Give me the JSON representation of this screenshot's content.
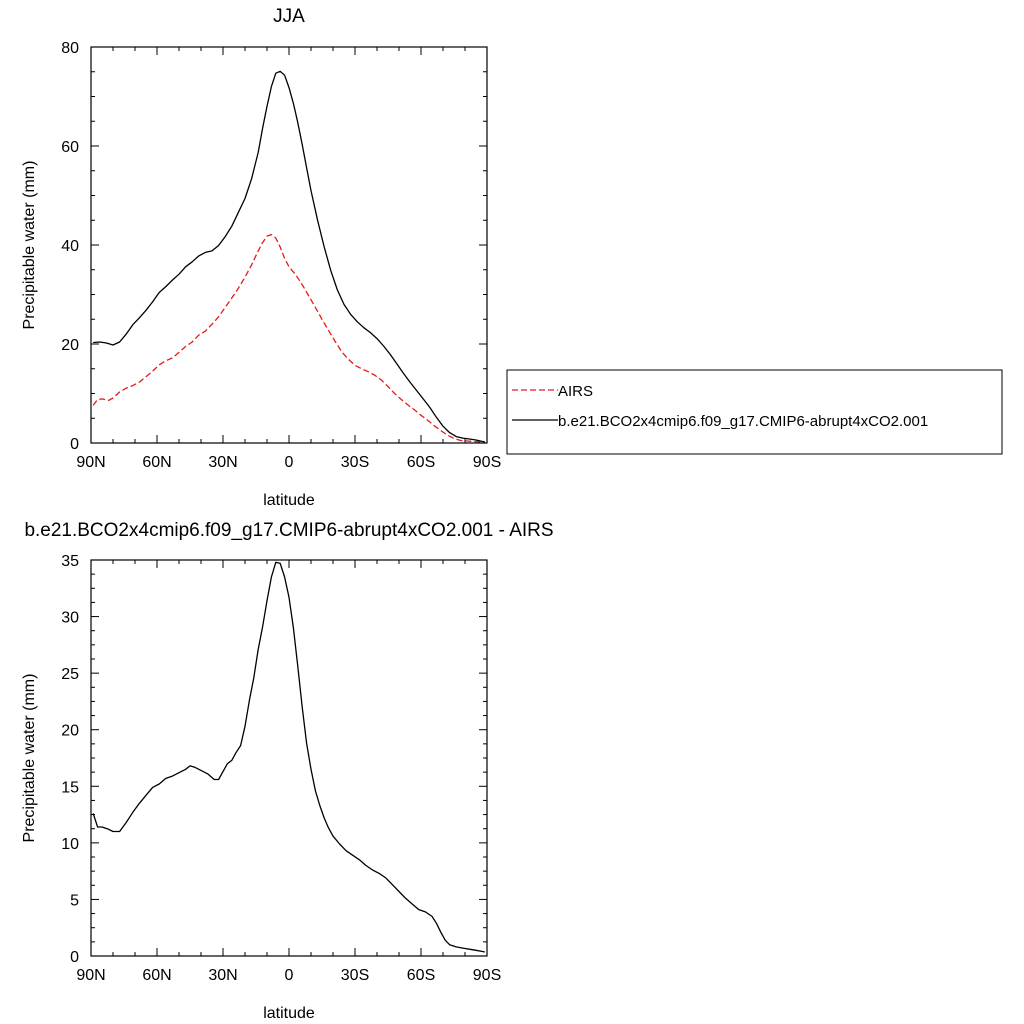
{
  "colors": {
    "model": "#000000",
    "airs": "#e8191a",
    "axis": "#000000",
    "background": "#ffffff"
  },
  "chart_data": [
    {
      "type": "line",
      "title": "JJA",
      "xlabel": "latitude",
      "ylabel": "Precipitable water (mm)",
      "xlim": [
        90,
        -90
      ],
      "ylim": [
        0,
        80
      ],
      "xticks": [
        90,
        60,
        30,
        0,
        -30,
        -60,
        -90
      ],
      "xtick_labels": [
        "90N",
        "60N",
        "30N",
        "0",
        "30S",
        "60S",
        "90S"
      ],
      "yticks": [
        0,
        20,
        40,
        60,
        80
      ],
      "ytick_labels": [
        "0",
        "20",
        "40",
        "60",
        "80"
      ],
      "grid": false,
      "legend": "right",
      "series": [
        {
          "name": "AIRS",
          "style": "dashed",
          "color": "#e8191a",
          "points": [
            [
              89,
              7.6
            ],
            [
              87,
              8.8
            ],
            [
              85,
              8.9
            ],
            [
              82,
              8.6
            ],
            [
              80,
              9.1
            ],
            [
              77,
              10.3
            ],
            [
              74,
              11.1
            ],
            [
              71,
              11.6
            ],
            [
              68,
              12.3
            ],
            [
              65,
              13.4
            ],
            [
              62,
              14.5
            ],
            [
              59,
              15.8
            ],
            [
              56,
              16.6
            ],
            [
              53,
              17.2
            ],
            [
              50,
              18.3
            ],
            [
              47,
              19.5
            ],
            [
              44,
              20.4
            ],
            [
              41,
              21.8
            ],
            [
              38,
              22.6
            ],
            [
              35,
              24.0
            ],
            [
              32,
              25.5
            ],
            [
              29,
              27.4
            ],
            [
              26,
              29.3
            ],
            [
              23,
              31.3
            ],
            [
              20,
              33.5
            ],
            [
              17,
              36.0
            ],
            [
              14,
              38.8
            ],
            [
              12,
              40.5
            ],
            [
              10,
              41.8
            ],
            [
              8,
              42.1
            ],
            [
              6,
              41.4
            ],
            [
              4,
              39.6
            ],
            [
              2,
              37.3
            ],
            [
              0,
              35.6
            ],
            [
              -3,
              34.0
            ],
            [
              -6,
              32.0
            ],
            [
              -9,
              29.7
            ],
            [
              -12,
              27.4
            ],
            [
              -15,
              25.0
            ],
            [
              -18,
              22.7
            ],
            [
              -21,
              20.5
            ],
            [
              -24,
              18.4
            ],
            [
              -27,
              16.9
            ],
            [
              -30,
              15.7
            ],
            [
              -33,
              15.0
            ],
            [
              -36,
              14.4
            ],
            [
              -39,
              13.7
            ],
            [
              -42,
              12.7
            ],
            [
              -45,
              11.4
            ],
            [
              -48,
              10.0
            ],
            [
              -51,
              8.8
            ],
            [
              -54,
              7.7
            ],
            [
              -57,
              6.7
            ],
            [
              -60,
              5.6
            ],
            [
              -63,
              4.6
            ],
            [
              -66,
              3.5
            ],
            [
              -69,
              2.5
            ],
            [
              -72,
              1.6
            ],
            [
              -75,
              0.9
            ],
            [
              -78,
              0.5
            ],
            [
              -81,
              0.4
            ],
            [
              -84,
              0.3
            ],
            [
              -87,
              0.25
            ],
            [
              -89,
              0.2
            ]
          ]
        },
        {
          "name": "b.e21.BCO2x4cmip6.f09_g17.CMIP6-abrupt4xCO2.001",
          "style": "solid",
          "color": "#000000",
          "points": [
            [
              89,
              20.3
            ],
            [
              86,
              20.4
            ],
            [
              83,
              20.2
            ],
            [
              80,
              19.8
            ],
            [
              77,
              20.4
            ],
            [
              74,
              22.0
            ],
            [
              71,
              23.9
            ],
            [
              68,
              25.3
            ],
            [
              65,
              26.8
            ],
            [
              62,
              28.5
            ],
            [
              59,
              30.4
            ],
            [
              56,
              31.6
            ],
            [
              53,
              32.9
            ],
            [
              50,
              34.1
            ],
            [
              47,
              35.6
            ],
            [
              44,
              36.6
            ],
            [
              41,
              37.8
            ],
            [
              38,
              38.5
            ],
            [
              35,
              38.8
            ],
            [
              32,
              39.9
            ],
            [
              29,
              41.7
            ],
            [
              26,
              43.8
            ],
            [
              23,
              46.6
            ],
            [
              20,
              49.4
            ],
            [
              17,
              53.4
            ],
            [
              14,
              58.7
            ],
            [
              12,
              63.6
            ],
            [
              10,
              68.0
            ],
            [
              8,
              72.0
            ],
            [
              6,
              74.7
            ],
            [
              4,
              75.1
            ],
            [
              2,
              74.3
            ],
            [
              0,
              71.8
            ],
            [
              -2,
              68.6
            ],
            [
              -4,
              64.7
            ],
            [
              -6,
              60.3
            ],
            [
              -8,
              55.6
            ],
            [
              -10,
              51.0
            ],
            [
              -13,
              45.0
            ],
            [
              -16,
              39.6
            ],
            [
              -19,
              34.8
            ],
            [
              -22,
              30.9
            ],
            [
              -25,
              28.0
            ],
            [
              -28,
              26.0
            ],
            [
              -31,
              24.5
            ],
            [
              -34,
              23.3
            ],
            [
              -37,
              22.3
            ],
            [
              -40,
              21.1
            ],
            [
              -43,
              19.6
            ],
            [
              -46,
              17.9
            ],
            [
              -49,
              16.0
            ],
            [
              -52,
              14.1
            ],
            [
              -55,
              12.3
            ],
            [
              -58,
              10.6
            ],
            [
              -61,
              8.9
            ],
            [
              -64,
              7.2
            ],
            [
              -67,
              5.2
            ],
            [
              -70,
              3.4
            ],
            [
              -73,
              2.1
            ],
            [
              -76,
              1.3
            ],
            [
              -79,
              1.0
            ],
            [
              -82,
              0.8
            ],
            [
              -85,
              0.6
            ],
            [
              -88,
              0.3
            ],
            [
              -89,
              0.2
            ]
          ]
        }
      ]
    },
    {
      "type": "line",
      "title": "b.e21.BCO2x4cmip6.f09_g17.CMIP6-abrupt4xCO2.001 - AIRS",
      "xlabel": "latitude",
      "ylabel": "Precipitable water (mm)",
      "xlim": [
        90,
        -90
      ],
      "ylim": [
        0,
        35
      ],
      "xticks": [
        90,
        60,
        30,
        0,
        -30,
        -60,
        -90
      ],
      "xtick_labels": [
        "90N",
        "60N",
        "30N",
        "0",
        "30S",
        "60S",
        "90S"
      ],
      "yticks": [
        0,
        5,
        10,
        15,
        20,
        25,
        30,
        35
      ],
      "ytick_labels": [
        "0",
        "5",
        "10",
        "15",
        "20",
        "25",
        "30",
        "35"
      ],
      "grid": false,
      "legend": "none",
      "series": [
        {
          "style": "solid",
          "color": "#000000",
          "points": [
            [
              89,
              12.6
            ],
            [
              87,
              11.4
            ],
            [
              85,
              11.4
            ],
            [
              82,
              11.2
            ],
            [
              80,
              11.0
            ],
            [
              77,
              11.0
            ],
            [
              74,
              11.8
            ],
            [
              71,
              12.7
            ],
            [
              68,
              13.5
            ],
            [
              65,
              14.2
            ],
            [
              62,
              14.9
            ],
            [
              59,
              15.2
            ],
            [
              56,
              15.7
            ],
            [
              53,
              15.9
            ],
            [
              50,
              16.2
            ],
            [
              47,
              16.5
            ],
            [
              45,
              16.8
            ],
            [
              43,
              16.7
            ],
            [
              40,
              16.4
            ],
            [
              37,
              16.1
            ],
            [
              34,
              15.6
            ],
            [
              32,
              15.6
            ],
            [
              30,
              16.3
            ],
            [
              28,
              17.0
            ],
            [
              26,
              17.3
            ],
            [
              24,
              18.0
            ],
            [
              22,
              18.6
            ],
            [
              20,
              20.3
            ],
            [
              18,
              22.6
            ],
            [
              16,
              24.6
            ],
            [
              14,
              27.1
            ],
            [
              12,
              29.1
            ],
            [
              10,
              31.4
            ],
            [
              8,
              33.5
            ],
            [
              6,
              34.8
            ],
            [
              4,
              34.7
            ],
            [
              2,
              33.5
            ],
            [
              0,
              31.7
            ],
            [
              -2,
              29.0
            ],
            [
              -4,
              25.6
            ],
            [
              -6,
              22.0
            ],
            [
              -8,
              18.8
            ],
            [
              -10,
              16.5
            ],
            [
              -12,
              14.6
            ],
            [
              -14,
              13.3
            ],
            [
              -16,
              12.2
            ],
            [
              -18,
              11.3
            ],
            [
              -20,
              10.6
            ],
            [
              -23,
              9.9
            ],
            [
              -26,
              9.3
            ],
            [
              -29,
              8.9
            ],
            [
              -32,
              8.5
            ],
            [
              -35,
              8.0
            ],
            [
              -38,
              7.6
            ],
            [
              -41,
              7.3
            ],
            [
              -44,
              6.9
            ],
            [
              -47,
              6.3
            ],
            [
              -50,
              5.7
            ],
            [
              -53,
              5.1
            ],
            [
              -56,
              4.6
            ],
            [
              -59,
              4.1
            ],
            [
              -62,
              3.9
            ],
            [
              -65,
              3.5
            ],
            [
              -67,
              2.9
            ],
            [
              -69,
              2.1
            ],
            [
              -71,
              1.4
            ],
            [
              -73,
              1.0
            ],
            [
              -76,
              0.8
            ],
            [
              -79,
              0.7
            ],
            [
              -82,
              0.6
            ],
            [
              -85,
              0.5
            ],
            [
              -88,
              0.4
            ],
            [
              -89,
              0.35
            ]
          ]
        }
      ]
    }
  ]
}
